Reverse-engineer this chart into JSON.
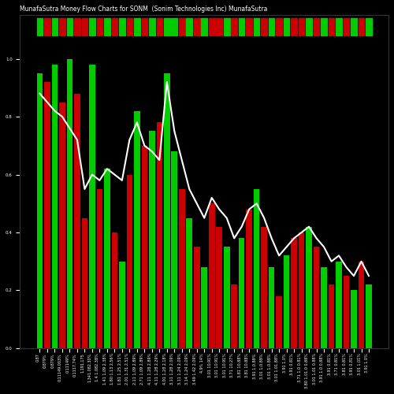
{
  "title": "MunafaSutra Money Flow Charts for SONM  (Sonim Technologies Inc) MunafaSutra",
  "background_color": "#000000",
  "bar_colors_pattern": [
    "#00cc00",
    "#cc0000",
    "#00cc00",
    "#cc0000",
    "#00cc00",
    "#cc0000",
    "#cc0000",
    "#00cc00",
    "#cc0000",
    "#00cc00",
    "#cc0000",
    "#00cc00",
    "#cc0000",
    "#00cc00",
    "#cc0000",
    "#00cc00",
    "#cc0000",
    "#00cc00",
    "#00cc00",
    "#cc0000",
    "#00cc00",
    "#cc0000",
    "#00cc00",
    "#cc0000",
    "#cc0000",
    "#00cc00",
    "#cc0000",
    "#00cc00",
    "#cc0000",
    "#00cc00",
    "#cc0000",
    "#00cc00",
    "#cc0000",
    "#00cc00",
    "#cc0000",
    "#cc0000",
    "#00cc00",
    "#cc0000",
    "#00cc00",
    "#cc0000",
    "#00cc00",
    "#cc0000",
    "#00cc00",
    "#cc0000",
    "#00cc00"
  ],
  "bar_heights": [
    95,
    92,
    98,
    85,
    100,
    88,
    45,
    98,
    55,
    62,
    40,
    30,
    60,
    82,
    70,
    75,
    78,
    95,
    68,
    55,
    45,
    35,
    28,
    50,
    42,
    35,
    22,
    38,
    48,
    55,
    42,
    28,
    18,
    32,
    38,
    40,
    42,
    35,
    28,
    22,
    30,
    25,
    20,
    30,
    22
  ],
  "line_values": [
    88,
    85,
    82,
    80,
    76,
    72,
    55,
    60,
    58,
    62,
    60,
    58,
    72,
    78,
    70,
    68,
    65,
    92,
    75,
    65,
    55,
    50,
    45,
    52,
    48,
    45,
    38,
    42,
    48,
    50,
    45,
    38,
    32,
    35,
    38,
    40,
    42,
    38,
    35,
    30,
    32,
    28,
    25,
    30,
    25
  ],
  "x_labels": [
    "0.87",
    "0.879%",
    "0.879%",
    "0.11149.003%",
    "0.11149%",
    "0.1117.74%",
    "1.191.175",
    "1.341.082.30%",
    "1.4 1.082.38%",
    "1.41 1.09 2.38%",
    "1.80 1.13 2.56%",
    "1.81 1.25 2.51%",
    "2.01 1.31 2.51%",
    "2.11 1.09 2.89%",
    "2.71 1.09 2.89%",
    "4.11 1.28 2.89%",
    "4.11 1.28 2.29%",
    "4.01 1.28 2.18%",
    "3.11 1.28 2.09%",
    "3.11 1.24 2.09%",
    "3.14 1.24 2.09%",
    "3.49 1.42 2.09%",
    "4.9% 14%",
    "3.01 10.91%",
    "3.01 10.91%",
    "3.01 10.91%",
    "3.71 10.27%",
    "3.81 10.88%",
    "3.81 10.88%",
    "3.91 1.0.88%",
    "3.01 1.0.88%",
    "3.01 1.0.88%",
    "3.01 1.01.88%",
    "3.91 1.0%",
    "3.91 0.81%",
    "3.71 1.0 0.81%",
    "3.80 1.01.0 0.88%",
    "3.01 1.01 0.88%",
    "3.91 1.0 0.88%",
    "3.91 0.81%",
    "3.71 0.81%",
    "3.81 0.81%",
    "3.91 0.81%",
    "3.01 1.01%",
    "3.91 1.0%"
  ]
}
